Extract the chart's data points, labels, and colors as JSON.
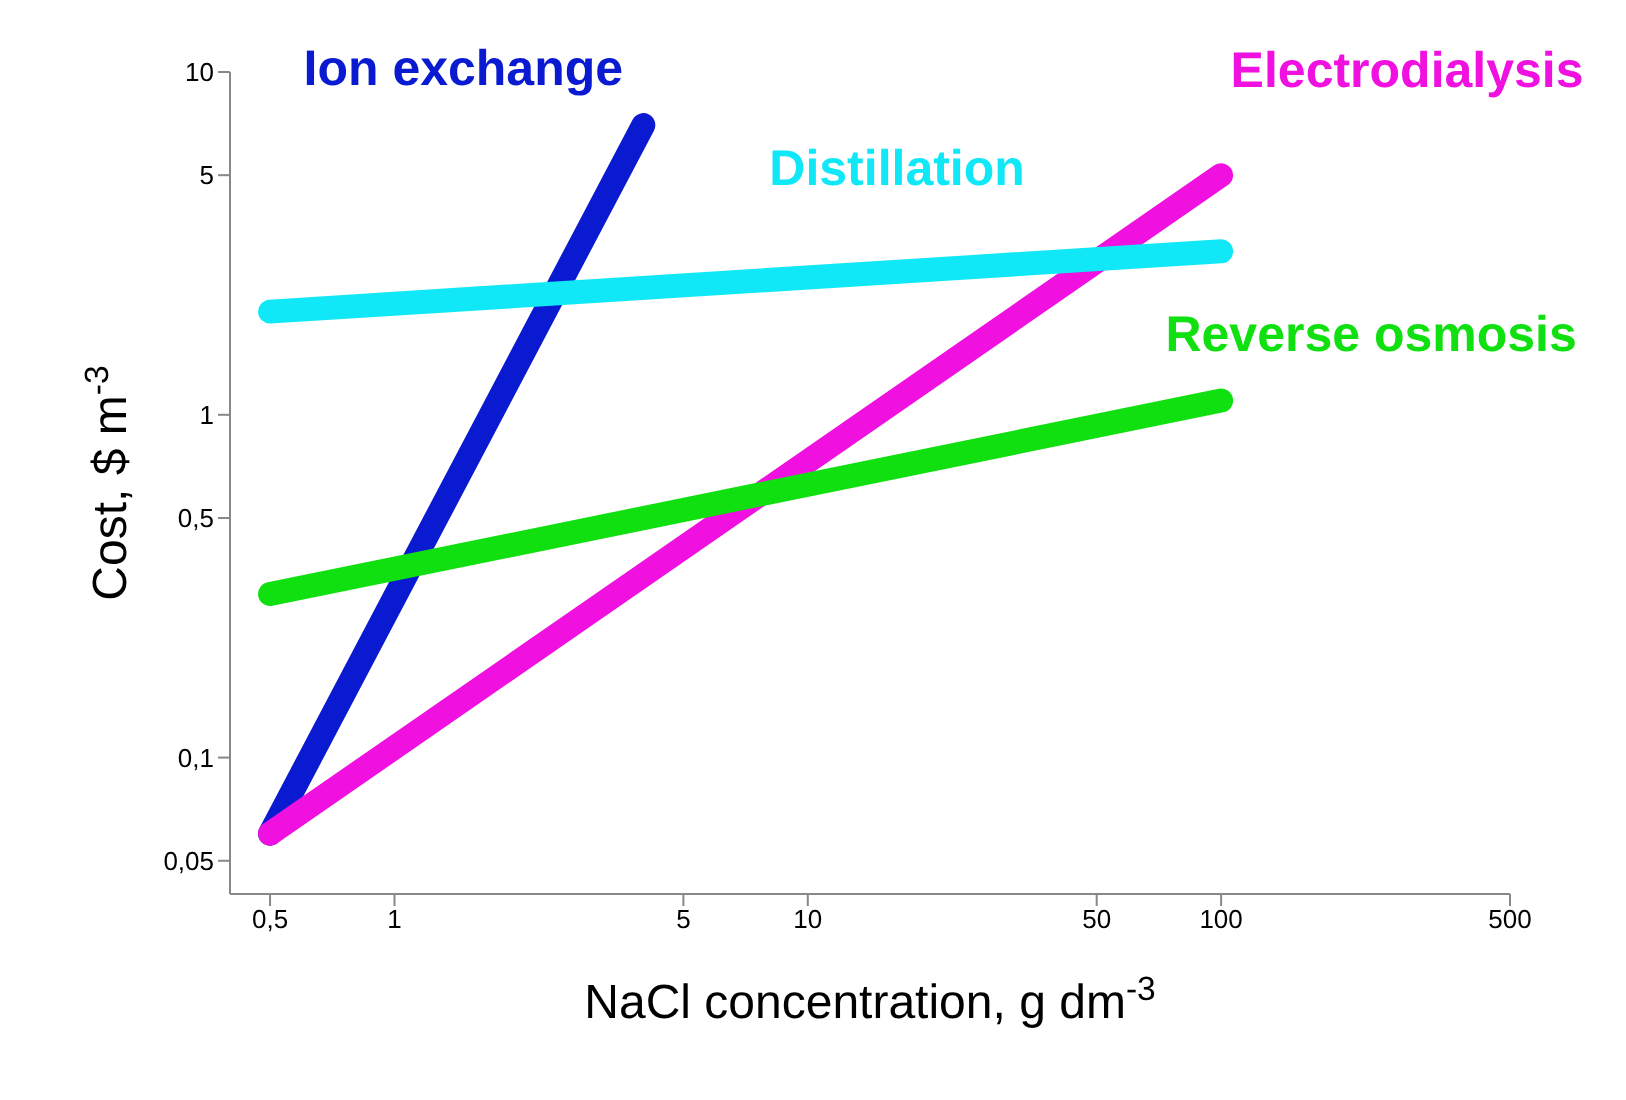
{
  "chart_data": {
    "type": "line",
    "xlabel": "NaCl concentration, g dm$^{-3}$",
    "ylabel": "Cost, $ m$^{-3}$",
    "log": "xy",
    "grid": false,
    "legend": false,
    "marker": "none",
    "line_style": "solid",
    "xlim": [
      0.4,
      500
    ],
    "xticks": [
      {
        "value": 0.5,
        "label": "0,5"
      },
      1,
      5,
      10,
      50,
      100,
      500
    ],
    "ylim": [
      0.04,
      10
    ],
    "yticks": [
      {
        "value": 0.05,
        "label": "0,05"
      },
      {
        "value": 0.1,
        "label": "0,1"
      },
      {
        "value": 0.5,
        "label": "0,5"
      },
      1,
      5,
      10
    ],
    "series": [
      {
        "name": "Ion exchange",
        "color": "#0a1ad0",
        "x": [
          0.5,
          4
        ],
        "values": [
          0.06,
          7
        ]
      },
      {
        "name": "Electrodialysis",
        "color": "#f010e0",
        "x": [
          0.5,
          100
        ],
        "values": [
          0.06,
          5
        ]
      },
      {
        "name": "Distillation",
        "color": "#10e8f8",
        "x": [
          0.5,
          100
        ],
        "values": [
          2,
          3
        ]
      },
      {
        "name": "Reverse osmosis",
        "color": "#10e010",
        "x": [
          0.5,
          100
        ],
        "values": [
          0.3,
          1.1
        ]
      }
    ]
  }
}
